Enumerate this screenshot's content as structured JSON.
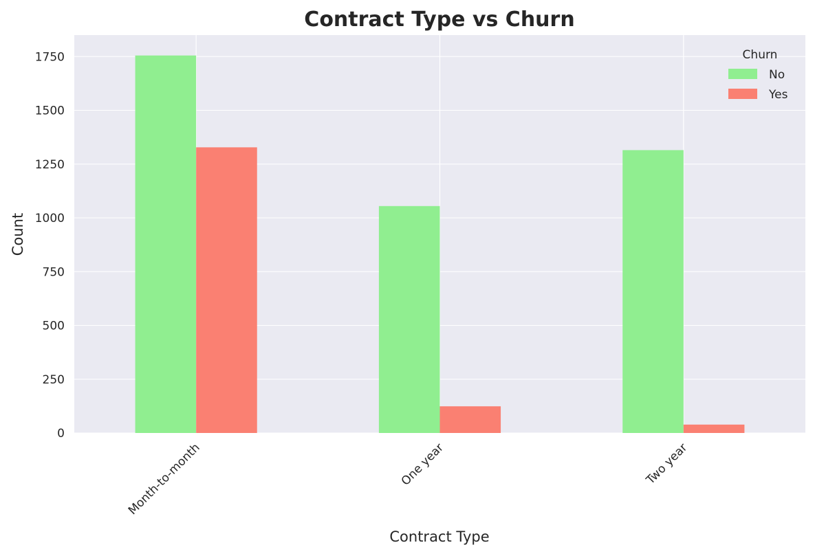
{
  "chart_data": {
    "type": "bar",
    "title": "Contract Type vs Churn",
    "xlabel": "Contract Type",
    "ylabel": "Count",
    "categories": [
      "Month-to-month",
      "One year",
      "Two year"
    ],
    "series": [
      {
        "name": "No",
        "values": [
          1755,
          1055,
          1315
        ],
        "color": "#90ee90"
      },
      {
        "name": "Yes",
        "values": [
          1328,
          124,
          39
        ],
        "color": "#fa8072"
      }
    ],
    "ylim": [
      0,
      1850
    ],
    "yticks": [
      0,
      250,
      500,
      750,
      1000,
      1250,
      1500,
      1750
    ],
    "grid": true,
    "legend": {
      "title": "Churn",
      "placement": "top-right"
    },
    "background": "#eaeaf2",
    "grid_color": "#ffffff"
  }
}
